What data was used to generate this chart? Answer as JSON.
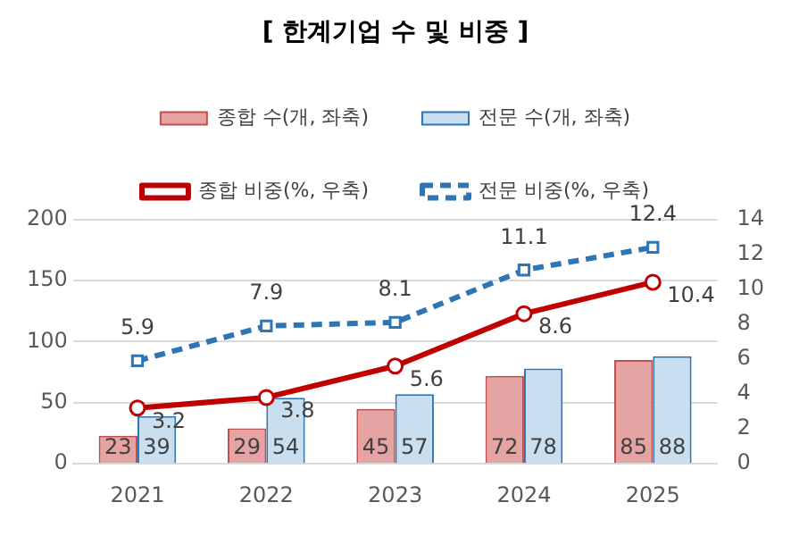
{
  "chart_data": {
    "type": "bar",
    "title": "[ 한계기업 수 및 비중 ]",
    "categories": [
      "2021",
      "2022",
      "2023",
      "2024",
      "2025"
    ],
    "series": [
      {
        "name": "종합 수(개, 좌축)",
        "color": "#e6a3a3",
        "values": [
          23,
          29,
          45,
          72,
          85
        ]
      },
      {
        "name": "전문 수(개, 좌축)",
        "color": "#c9dff0",
        "values": [
          39,
          54,
          57,
          78,
          88
        ]
      },
      {
        "name": "종합 비중(%, 우축)",
        "type": "line",
        "axis": "y2",
        "color": "#c00000",
        "marker": "circle",
        "line_style": "solid",
        "values": [
          3.2,
          3.8,
          5.6,
          8.6,
          10.4
        ]
      },
      {
        "name": "전문 비중(%, 우축)",
        "type": "line",
        "axis": "y2",
        "color": "#2e75b6",
        "marker": "square",
        "line_style": "dashed",
        "values": [
          5.9,
          7.9,
          8.1,
          11.1,
          12.4
        ]
      }
    ],
    "ylim": [
      0,
      200
    ],
    "yticks": [
      0,
      50,
      100,
      150,
      200
    ],
    "y2lim": [
      0,
      14
    ],
    "y2ticks": [
      0,
      2,
      4,
      6,
      8,
      10,
      12,
      14
    ],
    "grid": "y",
    "legend": "top",
    "data_labels": true
  }
}
